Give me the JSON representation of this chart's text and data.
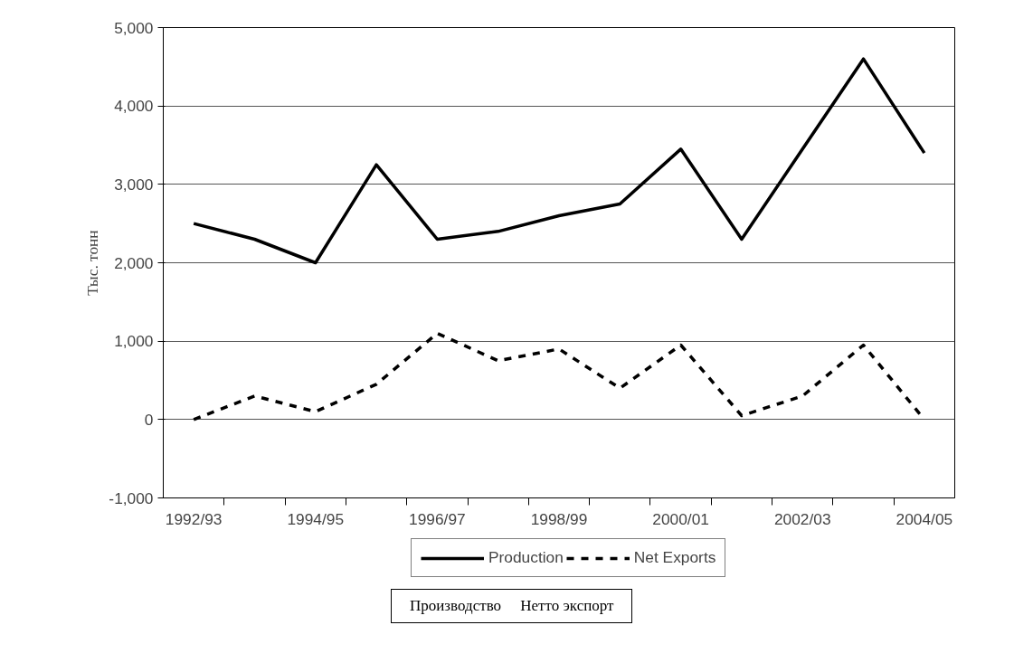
{
  "chart_data": {
    "type": "line",
    "categories": [
      "1992/93",
      null,
      "1994/95",
      null,
      "1996/97",
      null,
      "1998/99",
      null,
      "2000/01",
      null,
      "2002/03",
      null,
      "2004/05"
    ],
    "series": [
      {
        "name": "Production",
        "color": "#000000",
        "line_style": "solid",
        "values": [
          2500,
          2300,
          2000,
          3250,
          2300,
          2400,
          2600,
          2750,
          3450,
          2300,
          3450,
          4600,
          3400
        ]
      },
      {
        "name": "Net Exports",
        "color": "#000000",
        "line_style": "dashed",
        "values": [
          0,
          300,
          100,
          450,
          1100,
          750,
          900,
          400,
          950,
          50,
          300,
          950,
          0
        ]
      }
    ],
    "ylabel": "Тыс. тонн",
    "ylim": [
      -1000,
      5000
    ],
    "yticks": [
      {
        "value": -1000,
        "label": "-1,000"
      },
      0,
      {
        "value": 1000,
        "label": "1,000"
      },
      {
        "value": 2000,
        "label": "2,000"
      },
      {
        "value": 3000,
        "label": "3,000"
      },
      {
        "value": 4000,
        "label": "4,000"
      },
      {
        "value": 5000,
        "label": "5,000"
      }
    ],
    "grid": "y",
    "legend": "bottom",
    "marker": "none",
    "annotations": [
      "Производство     Нетто экспорт"
    ]
  }
}
